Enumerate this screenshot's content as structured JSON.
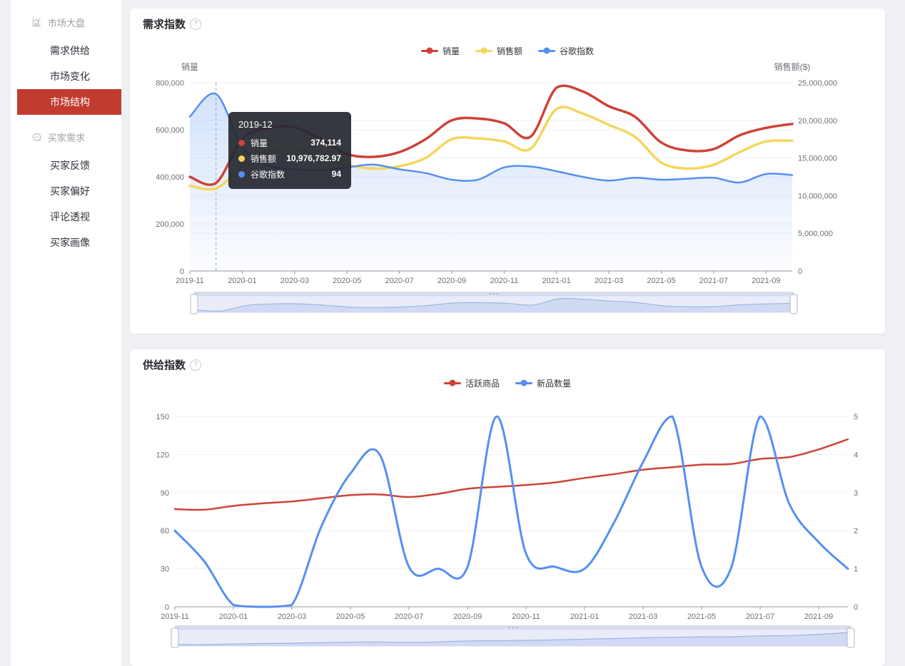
{
  "colors": {
    "red": "#ce4337",
    "yellow": "#f4d65c",
    "blue": "#568ff1",
    "sidebar_active": "#c13b2e"
  },
  "sidebar": {
    "sections": [
      {
        "icon": "bar-chart",
        "label": "市场大盘",
        "items": [
          {
            "label": "需求供给",
            "active": false
          },
          {
            "label": "市场变化",
            "active": false
          },
          {
            "label": "市场结构",
            "active": true
          }
        ]
      },
      {
        "icon": "comment",
        "label": "买家需求",
        "items": [
          {
            "label": "买家反馈",
            "active": false
          },
          {
            "label": "买家偏好",
            "active": false
          },
          {
            "label": "评论透视",
            "active": false
          },
          {
            "label": "买家画像",
            "active": false
          }
        ]
      }
    ]
  },
  "demand_card": {
    "title": "需求指数",
    "help_glyph": "?",
    "tooltip": {
      "title": "2019-12",
      "rows": [
        {
          "label": "销量",
          "value": "374,114",
          "color": "#ce4337"
        },
        {
          "label": "销售额",
          "value": "10,976,782.97",
          "color": "#f4d65c"
        },
        {
          "label": "谷歌指数",
          "value": "94",
          "color": "#568ff1"
        }
      ]
    }
  },
  "supply_card": {
    "title": "供给指数",
    "help_glyph": "?"
  },
  "chart_data": [
    {
      "type": "line",
      "title": "需求指数",
      "legend_position": "top-center",
      "grid": true,
      "smooth": true,
      "pointer_index": 1,
      "slider_preview": 0,
      "x": [
        "2019-11",
        "2019-12",
        "2020-01",
        "2020-02",
        "2020-03",
        "2020-04",
        "2020-05",
        "2020-06",
        "2020-07",
        "2020-08",
        "2020-09",
        "2020-10",
        "2020-11",
        "2020-12",
        "2021-01",
        "2021-02",
        "2021-03",
        "2021-04",
        "2021-05",
        "2021-06",
        "2021-07",
        "2021-08",
        "2021-09",
        "2021-10"
      ],
      "x_tick_labels": [
        "2019-11",
        "2020-01",
        "2020-03",
        "2020-05",
        "2020-07",
        "2020-09",
        "2020-11",
        "2021-01",
        "2021-03",
        "2021-05",
        "2021-07",
        "2021-09"
      ],
      "y_left": {
        "name": "销量",
        "ticks": [
          "800,000",
          "600,000",
          "400,000",
          "200,000",
          "0"
        ],
        "min": 0,
        "max": 800000
      },
      "y_right": {
        "name": "销售额($)",
        "ticks": [
          "25,000,000",
          "20,000,000",
          "15,000,000",
          "10,000,000",
          "5,000,000",
          "0"
        ],
        "min": 0,
        "max": 25000000
      },
      "series": [
        {
          "name": "销量",
          "color": "#ce4337",
          "width": 3.5,
          "max": 800000,
          "values": [
            400000,
            374114,
            560000,
            608000,
            610000,
            560000,
            497000,
            485000,
            505000,
            560000,
            640000,
            648000,
            628000,
            570000,
            779000,
            763000,
            700000,
            655000,
            546000,
            512000,
            518000,
            577000,
            608000,
            625000
          ]
        },
        {
          "name": "销售额",
          "color": "#f4d65c",
          "width": 3.5,
          "max": 25000000,
          "values": [
            11300000,
            10976782.97,
            13800000,
            15800000,
            16200000,
            15200000,
            14100000,
            13600000,
            13900000,
            15000000,
            17500000,
            17600000,
            17200000,
            16200000,
            21500000,
            20900000,
            19400000,
            17800000,
            14400000,
            13600000,
            14100000,
            15800000,
            17200000,
            17300000
          ]
        },
        {
          "name": "谷歌指数",
          "color": "#568ff1",
          "width": 2.5,
          "max": 100,
          "area": true,
          "values": [
            82,
            94,
            66,
            56,
            54,
            53.5,
            55,
            56.5,
            54,
            52,
            48.5,
            48.5,
            55,
            55.5,
            53,
            50,
            48,
            49.5,
            48.5,
            49,
            49.5,
            47,
            51.5,
            51
          ]
        }
      ]
    },
    {
      "type": "line",
      "title": "供给指数",
      "legend_position": "top-center",
      "grid": true,
      "smooth": true,
      "pointer_index": null,
      "slider_preview": 0,
      "x": [
        "2019-11",
        "2019-12",
        "2020-01",
        "2020-02",
        "2020-03",
        "2020-04",
        "2020-05",
        "2020-06",
        "2020-07",
        "2020-08",
        "2020-09",
        "2020-10",
        "2020-11",
        "2020-12",
        "2021-01",
        "2021-02",
        "2021-03",
        "2021-04",
        "2021-05",
        "2021-06",
        "2021-07",
        "2021-08",
        "2021-09",
        "2021-10"
      ],
      "x_tick_labels": [
        "2019-11",
        "2020-01",
        "2020-03",
        "2020-05",
        "2020-07",
        "2020-09",
        "2020-11",
        "2021-01",
        "2021-03",
        "2021-05",
        "2021-07",
        "2021-09"
      ],
      "y_left": {
        "name": "",
        "ticks": [
          "150",
          "120",
          "90",
          "60",
          "30",
          "0"
        ],
        "min": 0,
        "max": 150
      },
      "y_right": {
        "name": "",
        "ticks": [
          "5",
          "4",
          "3",
          "2",
          "1",
          "0"
        ],
        "min": 0,
        "max": 5
      },
      "series": [
        {
          "name": "活跃商品",
          "color": "#ce4337",
          "width": 2.5,
          "max": 150,
          "values": [
            77,
            76.5,
            79.5,
            81.5,
            83,
            85.5,
            88,
            88.5,
            86.5,
            89,
            93,
            94.5,
            96,
            98,
            101.5,
            104.5,
            108,
            110,
            112,
            112.5,
            116.5,
            118,
            124,
            132
          ]
        },
        {
          "name": "新品数量",
          "color": "#568ff1",
          "width": 3,
          "max": 5,
          "values": [
            2,
            1.2,
            0.05,
            0,
            0.05,
            2.1,
            3.5,
            4,
            1.05,
            1,
            1.05,
            5,
            1.4,
            1.05,
            1,
            2.2,
            3.8,
            5,
            1.05,
            1,
            5,
            2.7,
            1.7,
            1
          ]
        }
      ]
    }
  ]
}
